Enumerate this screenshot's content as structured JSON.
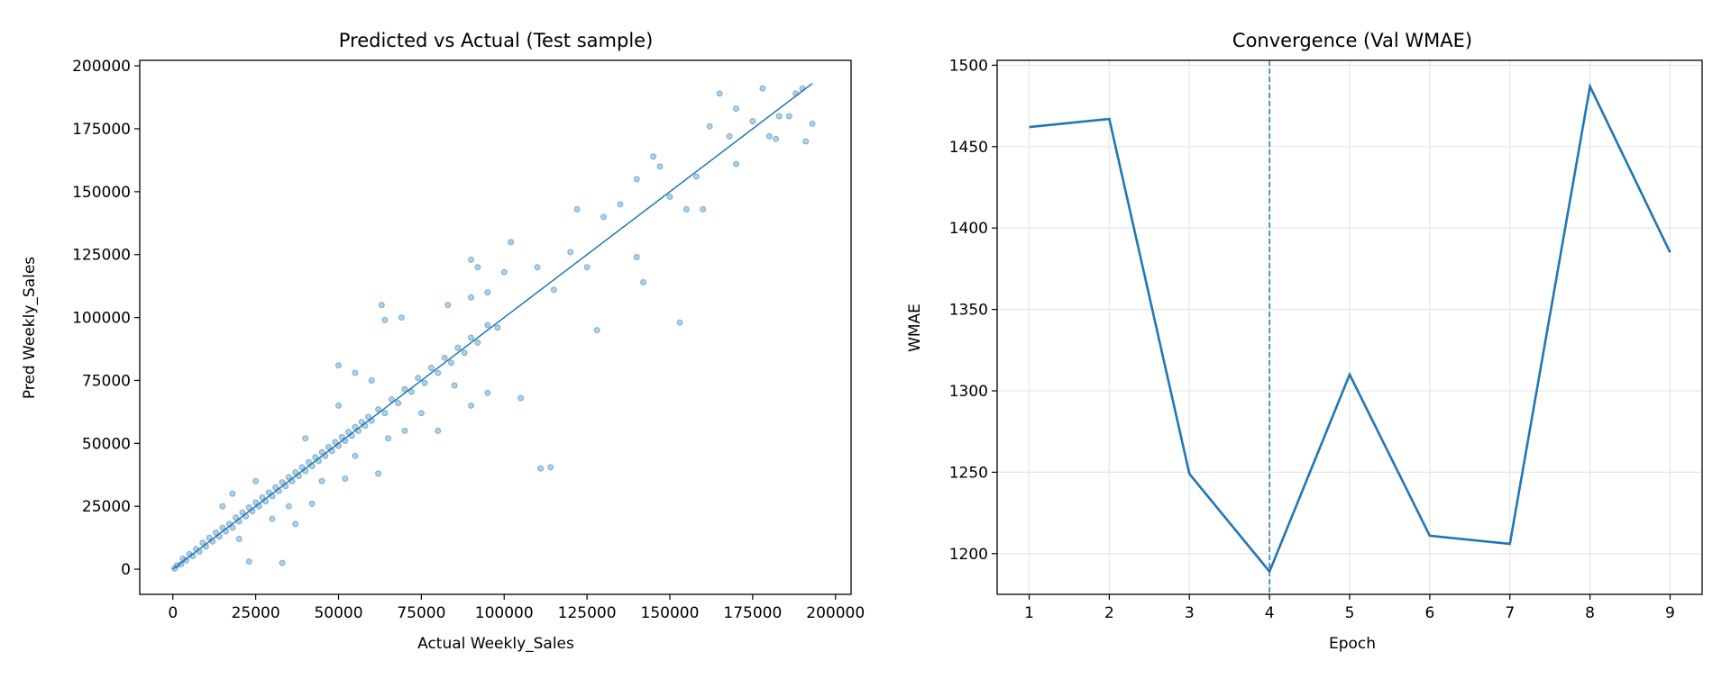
{
  "chart_data": [
    {
      "type": "scatter",
      "title": "Predicted vs Actual (Test sample)",
      "xlabel": "Actual Weekly_Sales",
      "ylabel": "Pred Weekly_Sales",
      "xlim": [
        -10000,
        204700
      ],
      "ylim": [
        -10000,
        202200
      ],
      "xticks": [
        0,
        25000,
        50000,
        75000,
        100000,
        125000,
        150000,
        175000,
        200000
      ],
      "yticks": [
        0,
        25000,
        50000,
        75000,
        100000,
        125000,
        150000,
        175000,
        200000
      ],
      "grid": false,
      "color": "#1f77b4",
      "reference_line": {
        "x": [
          0,
          193000
        ],
        "y": [
          0,
          193000
        ]
      },
      "points": [
        [
          500,
          300
        ],
        [
          1200,
          1500
        ],
        [
          2500,
          2000
        ],
        [
          3000,
          4200
        ],
        [
          4000,
          3500
        ],
        [
          5000,
          6000
        ],
        [
          6000,
          5200
        ],
        [
          7000,
          8000
        ],
        [
          8000,
          7000
        ],
        [
          9000,
          10500
        ],
        [
          10000,
          9000
        ],
        [
          11000,
          12500
        ],
        [
          12000,
          11000
        ],
        [
          13000,
          14500
        ],
        [
          14000,
          13000
        ],
        [
          15000,
          16500
        ],
        [
          16000,
          15000
        ],
        [
          17000,
          18000
        ],
        [
          18000,
          16500
        ],
        [
          19000,
          20500
        ],
        [
          20000,
          19000
        ],
        [
          21000,
          22500
        ],
        [
          22000,
          21000
        ],
        [
          23000,
          24500
        ],
        [
          24000,
          23000
        ],
        [
          25000,
          26500
        ],
        [
          26000,
          25000
        ],
        [
          27000,
          28500
        ],
        [
          28000,
          27000
        ],
        [
          29000,
          30500
        ],
        [
          30000,
          29000
        ],
        [
          31000,
          32500
        ],
        [
          32000,
          31000
        ],
        [
          33000,
          34500
        ],
        [
          34000,
          33000
        ],
        [
          35000,
          36500
        ],
        [
          36000,
          35000
        ],
        [
          37000,
          38500
        ],
        [
          38000,
          37000
        ],
        [
          39000,
          40500
        ],
        [
          40000,
          39000
        ],
        [
          41000,
          42500
        ],
        [
          42000,
          41000
        ],
        [
          43000,
          44500
        ],
        [
          44000,
          43000
        ],
        [
          45000,
          46500
        ],
        [
          46000,
          45000
        ],
        [
          47000,
          48500
        ],
        [
          48000,
          47000
        ],
        [
          49000,
          50500
        ],
        [
          50000,
          49000
        ],
        [
          51000,
          52500
        ],
        [
          52000,
          51000
        ],
        [
          53000,
          54500
        ],
        [
          54000,
          53000
        ],
        [
          55000,
          56500
        ],
        [
          56000,
          55000
        ],
        [
          57000,
          58500
        ],
        [
          58000,
          57000
        ],
        [
          59000,
          60500
        ],
        [
          60000,
          59000
        ],
        [
          62000,
          63500
        ],
        [
          64000,
          62000
        ],
        [
          66000,
          67500
        ],
        [
          68000,
          66000
        ],
        [
          70000,
          71500
        ],
        [
          72000,
          70500
        ],
        [
          74000,
          76000
        ],
        [
          76000,
          74000
        ],
        [
          78000,
          80000
        ],
        [
          80000,
          78000
        ],
        [
          82000,
          84000
        ],
        [
          84000,
          82000
        ],
        [
          86000,
          88000
        ],
        [
          88000,
          86000
        ],
        [
          90000,
          92000
        ],
        [
          92000,
          90000
        ],
        [
          95000,
          97000
        ],
        [
          98000,
          96000
        ],
        [
          15000,
          25000
        ],
        [
          20000,
          12000
        ],
        [
          25000,
          35000
        ],
        [
          30000,
          20000
        ],
        [
          18000,
          30000
        ],
        [
          35000,
          25000
        ],
        [
          40000,
          52000
        ],
        [
          45000,
          35000
        ],
        [
          50000,
          65000
        ],
        [
          55000,
          45000
        ],
        [
          60000,
          75000
        ],
        [
          65000,
          52000
        ],
        [
          33000,
          2500
        ],
        [
          23000,
          3000
        ],
        [
          37000,
          18000
        ],
        [
          42000,
          26000
        ],
        [
          52000,
          36000
        ],
        [
          62000,
          38000
        ],
        [
          70000,
          55000
        ],
        [
          75000,
          62000
        ],
        [
          80000,
          55000
        ],
        [
          85000,
          73000
        ],
        [
          90000,
          65000
        ],
        [
          95000,
          70000
        ],
        [
          105000,
          68000
        ],
        [
          63000,
          105000
        ],
        [
          64000,
          99000
        ],
        [
          69000,
          100000
        ],
        [
          50000,
          81000
        ],
        [
          55000,
          78000
        ],
        [
          83000,
          105000
        ],
        [
          90000,
          108000
        ],
        [
          100000,
          118000
        ],
        [
          95000,
          110000
        ],
        [
          110000,
          120000
        ],
        [
          115000,
          111000
        ],
        [
          120000,
          126000
        ],
        [
          125000,
          120000
        ],
        [
          128000,
          95000
        ],
        [
          153000,
          98000
        ],
        [
          111000,
          40000
        ],
        [
          114000,
          40500
        ],
        [
          90000,
          123000
        ],
        [
          92000,
          120000
        ],
        [
          102000,
          130000
        ],
        [
          122000,
          143000
        ],
        [
          130000,
          140000
        ],
        [
          135000,
          145000
        ],
        [
          140000,
          155000
        ],
        [
          142000,
          114000
        ],
        [
          145000,
          164000
        ],
        [
          140000,
          124000
        ],
        [
          150000,
          148000
        ],
        [
          155000,
          143000
        ],
        [
          158000,
          156000
        ],
        [
          160000,
          143000
        ],
        [
          147000,
          160000
        ],
        [
          162000,
          176000
        ],
        [
          165000,
          189000
        ],
        [
          170000,
          183000
        ],
        [
          170000,
          161000
        ],
        [
          175000,
          178000
        ],
        [
          178000,
          191000
        ],
        [
          180000,
          172000
        ],
        [
          183000,
          180000
        ],
        [
          186000,
          180000
        ],
        [
          188000,
          189000
        ],
        [
          190000,
          191000
        ],
        [
          191000,
          170000
        ],
        [
          193000,
          177000
        ],
        [
          182000,
          171000
        ],
        [
          168000,
          172000
        ]
      ]
    },
    {
      "type": "line",
      "title": "Convergence (Val WMAE)",
      "xlabel": "Epoch",
      "ylabel": "WMAE",
      "xlim": [
        0.6,
        9.4
      ],
      "ylim": [
        1175,
        1503
      ],
      "xticks": [
        1,
        2,
        3,
        4,
        5,
        6,
        7,
        8,
        9
      ],
      "yticks": [
        1200,
        1250,
        1300,
        1350,
        1400,
        1450,
        1500
      ],
      "grid": true,
      "color": "#1f77b4",
      "best_epoch_marker": 4,
      "x": [
        1,
        2,
        3,
        4,
        5,
        6,
        7,
        8,
        9
      ],
      "y": [
        1462,
        1467,
        1249,
        1189,
        1310,
        1211,
        1206,
        1487,
        1385
      ]
    }
  ]
}
